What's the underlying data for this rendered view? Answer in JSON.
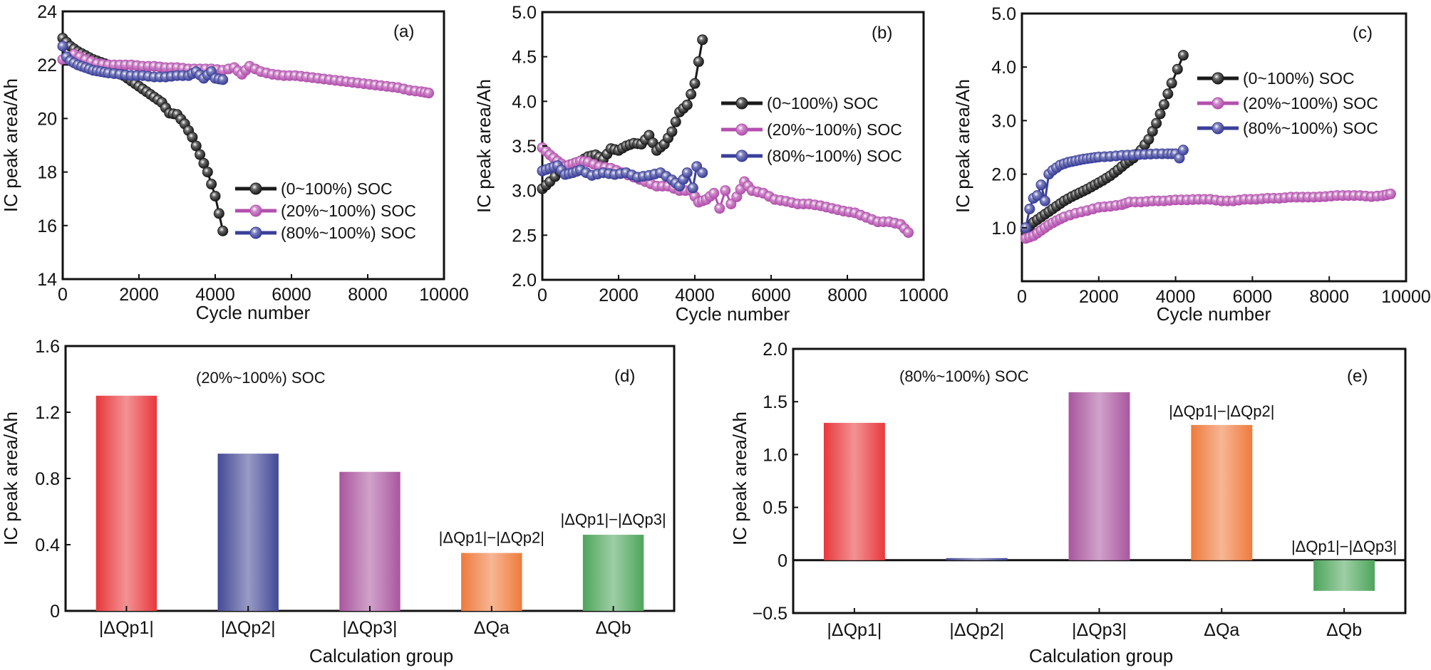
{
  "chart_data": [
    {
      "id": "a",
      "type": "line",
      "panel_label": "(a)",
      "title": "",
      "xlabel": "Cycle number",
      "ylabel": "IC peak area/Ah",
      "xlim": [
        0,
        10000
      ],
      "ylim": [
        14,
        24
      ],
      "xticks": [
        0,
        2000,
        4000,
        6000,
        8000,
        10000
      ],
      "xtick_labels": [
        "0",
        "2000",
        "4000",
        "6000",
        "8000",
        "10000"
      ],
      "yticks": [
        14,
        16,
        18,
        20,
        22,
        24
      ],
      "ytick_labels": [
        "14",
        "16",
        "18",
        "20",
        "22",
        "24"
      ],
      "grid": false,
      "legend_position": "bottom-right",
      "series": [
        {
          "name": "(0~100%) SOC",
          "color": "#1a1a1a",
          "x": [
            0,
            200,
            400,
            600,
            800,
            1000,
            1200,
            1400,
            1600,
            1800,
            2000,
            2200,
            2400,
            2600,
            2800,
            3000,
            3200,
            3400,
            3600,
            3800,
            4000,
            4200
          ],
          "y": [
            23.0,
            22.7,
            22.5,
            22.35,
            22.2,
            22.1,
            22.0,
            21.85,
            21.6,
            21.4,
            21.2,
            21.0,
            20.8,
            20.6,
            20.2,
            20.15,
            19.8,
            19.3,
            18.65,
            18.0,
            17.1,
            15.8
          ]
        },
        {
          "name": "(20%~100%) SOC",
          "color": "#b34fae",
          "x": [
            0,
            300,
            600,
            900,
            1200,
            1500,
            1800,
            2100,
            2400,
            2700,
            3000,
            3300,
            3600,
            3900,
            4200,
            4500,
            4700,
            4900,
            5200,
            5500,
            5800,
            6100,
            6400,
            6700,
            7000,
            7300,
            7600,
            7900,
            8200,
            8500,
            8800,
            9100,
            9400,
            9600
          ],
          "y": [
            22.2,
            22.4,
            22.2,
            22.05,
            22.0,
            22.0,
            22.0,
            21.95,
            21.95,
            21.9,
            21.9,
            21.85,
            21.85,
            21.85,
            21.8,
            21.9,
            21.65,
            21.95,
            21.75,
            21.65,
            21.6,
            21.6,
            21.55,
            21.5,
            21.45,
            21.4,
            21.35,
            21.3,
            21.25,
            21.2,
            21.15,
            21.05,
            21.0,
            20.95
          ]
        },
        {
          "name": "(80%~100%) SOC",
          "color": "#3a3f9a",
          "x": [
            0,
            100,
            200,
            400,
            600,
            800,
            1000,
            1200,
            1500,
            1800,
            2100,
            2400,
            2700,
            3000,
            3300,
            3500,
            3700,
            3900,
            4000,
            4200
          ],
          "y": [
            22.7,
            22.3,
            22.15,
            22.0,
            21.9,
            21.8,
            21.75,
            21.7,
            21.65,
            21.6,
            21.6,
            21.55,
            21.55,
            21.6,
            21.6,
            21.75,
            21.5,
            21.75,
            21.5,
            21.45
          ]
        }
      ]
    },
    {
      "id": "b",
      "type": "line",
      "panel_label": "(b)",
      "title": "",
      "xlabel": "Cycle number",
      "ylabel": "IC peak area/Ah",
      "xlim": [
        0,
        10000
      ],
      "ylim": [
        2.0,
        5.0
      ],
      "xticks": [
        0,
        2000,
        4000,
        6000,
        8000,
        10000
      ],
      "xtick_labels": [
        "0",
        "2000",
        "4000",
        "6000",
        "8000",
        "10000"
      ],
      "yticks": [
        2.0,
        2.5,
        3.0,
        3.5,
        4.0,
        4.5,
        5.0
      ],
      "ytick_labels": [
        "2.0",
        "2.5",
        "3.0",
        "3.5",
        "4.0",
        "4.5",
        "5.0"
      ],
      "grid": false,
      "legend_position": "center-right",
      "series": [
        {
          "name": "(0~100%) SOC",
          "color": "#1a1a1a",
          "x": [
            0,
            200,
            600,
            1000,
            1200,
            1400,
            1600,
            1800,
            2000,
            2200,
            2400,
            2600,
            2800,
            3000,
            3200,
            3400,
            3600,
            3800,
            4000,
            4200
          ],
          "y": [
            3.02,
            3.1,
            3.27,
            3.33,
            3.38,
            3.4,
            3.35,
            3.47,
            3.45,
            3.5,
            3.53,
            3.52,
            3.62,
            3.45,
            3.52,
            3.66,
            3.88,
            3.96,
            4.2,
            4.69
          ]
        },
        {
          "name": "(20%~100%) SOC",
          "color": "#b34fae",
          "x": [
            0,
            200,
            400,
            600,
            800,
            1000,
            1200,
            1500,
            1800,
            2100,
            2400,
            2700,
            3000,
            3300,
            3600,
            3900,
            4100,
            4300,
            4500,
            4650,
            4800,
            4950,
            5100,
            5300,
            5500,
            5800,
            6100,
            6400,
            6700,
            7000,
            7300,
            7600,
            7900,
            8200,
            8500,
            8800,
            9100,
            9400,
            9600
          ],
          "y": [
            3.48,
            3.4,
            3.33,
            3.27,
            3.3,
            3.33,
            3.32,
            3.27,
            3.25,
            3.2,
            3.15,
            3.1,
            3.05,
            3.05,
            3.0,
            3.0,
            2.87,
            2.9,
            2.97,
            2.8,
            3.0,
            2.85,
            2.93,
            3.1,
            3.0,
            2.97,
            2.9,
            2.88,
            2.85,
            2.85,
            2.83,
            2.8,
            2.77,
            2.75,
            2.7,
            2.65,
            2.65,
            2.62,
            2.53
          ]
        },
        {
          "name": "(80%~100%) SOC",
          "color": "#3a3f9a",
          "x": [
            0,
            200,
            400,
            600,
            800,
            1000,
            1300,
            1600,
            1900,
            2200,
            2500,
            2800,
            3100,
            3400,
            3600,
            3800,
            3950,
            4050,
            4200
          ],
          "y": [
            3.22,
            3.25,
            3.28,
            3.18,
            3.2,
            3.23,
            3.17,
            3.2,
            3.18,
            3.2,
            3.15,
            3.17,
            3.2,
            3.12,
            3.05,
            3.2,
            3.03,
            3.27,
            3.2
          ]
        }
      ]
    },
    {
      "id": "c",
      "type": "line",
      "panel_label": "(c)",
      "title": "",
      "xlabel": "Cycle number",
      "ylabel": "IC peak area/Ah",
      "xlim": [
        0,
        10000
      ],
      "ylim": [
        0,
        5.0
      ],
      "xticks": [
        0,
        2000,
        4000,
        6000,
        8000,
        10000
      ],
      "xtick_labels": [
        "0",
        "2000",
        "4000",
        "6000",
        "8000",
        "10000"
      ],
      "yticks": [
        1.0,
        2.0,
        3.0,
        4.0,
        5.0
      ],
      "ytick_labels": [
        "1.0",
        "2.0",
        "3.0",
        "4.0",
        "5.0"
      ],
      "grid": false,
      "legend_position": "top-right",
      "series": [
        {
          "name": "(0~100%) SOC",
          "color": "#1a1a1a",
          "x": [
            100,
            300,
            500,
            700,
            900,
            1100,
            1300,
            1500,
            1700,
            1900,
            2100,
            2300,
            2500,
            2700,
            2900,
            3100,
            3300,
            3500,
            3700,
            3900,
            4200
          ],
          "y": [
            0.95,
            1.1,
            1.2,
            1.3,
            1.4,
            1.5,
            1.58,
            1.65,
            1.72,
            1.8,
            1.88,
            1.97,
            2.08,
            2.2,
            2.3,
            2.45,
            2.65,
            2.95,
            3.3,
            3.7,
            4.22
          ]
        },
        {
          "name": "(20%~100%) SOC",
          "color": "#b34fae",
          "x": [
            100,
            300,
            500,
            700,
            900,
            1100,
            1400,
            1700,
            2000,
            2300,
            2600,
            2800,
            3100,
            3400,
            3700,
            4000,
            4300,
            4600,
            4900,
            5200,
            5500,
            5800,
            6100,
            6400,
            6700,
            7000,
            7300,
            7600,
            7900,
            8200,
            8500,
            8800,
            9100,
            9400,
            9600
          ],
          "y": [
            0.8,
            0.85,
            0.95,
            1.05,
            1.13,
            1.2,
            1.27,
            1.32,
            1.38,
            1.4,
            1.43,
            1.48,
            1.48,
            1.5,
            1.5,
            1.52,
            1.52,
            1.53,
            1.53,
            1.5,
            1.5,
            1.53,
            1.53,
            1.55,
            1.55,
            1.57,
            1.57,
            1.57,
            1.58,
            1.6,
            1.6,
            1.6,
            1.58,
            1.6,
            1.63
          ]
        },
        {
          "name": "(80%~100%) SOC",
          "color": "#3a3f9a",
          "x": [
            100,
            200,
            300,
            400,
            500,
            600,
            700,
            800,
            900,
            1000,
            1200,
            1400,
            1600,
            1800,
            2000,
            2300,
            2600,
            2900,
            3200,
            3500,
            3800,
            4000,
            4100,
            4200
          ],
          "y": [
            1.0,
            1.35,
            1.55,
            1.6,
            1.8,
            1.5,
            2.0,
            2.07,
            2.12,
            2.17,
            2.22,
            2.25,
            2.28,
            2.3,
            2.32,
            2.33,
            2.35,
            2.36,
            2.37,
            2.38,
            2.38,
            2.38,
            2.3,
            2.45
          ]
        }
      ]
    },
    {
      "id": "d",
      "type": "bar",
      "panel_label": "(d)",
      "title": "(20%~100%) SOC",
      "xlabel": "Calculation group",
      "ylabel": "IC peak area/Ah",
      "ylim": [
        0,
        1.6
      ],
      "yticks": [
        0,
        0.4,
        0.8,
        1.2,
        1.6
      ],
      "ytick_labels": [
        "0",
        "0.4",
        "0.8",
        "1.2",
        "1.6"
      ],
      "grid": false,
      "categories": [
        "|ΔQp1|",
        "|ΔQp2|",
        "|ΔQp3|",
        "ΔQa",
        "ΔQb"
      ],
      "values": [
        1.3,
        0.95,
        0.84,
        0.35,
        0.46
      ],
      "colors": [
        "#e8383c",
        "#444a96",
        "#a9569f",
        "#ee7b3c",
        "#4ea55c"
      ],
      "annotations": [
        {
          "category": "ΔQa",
          "text": "|ΔQp1|−|ΔQp2|"
        },
        {
          "category": "ΔQb",
          "text": "|ΔQp1|−|ΔQp3|"
        }
      ]
    },
    {
      "id": "e",
      "type": "bar",
      "panel_label": "(e)",
      "title": "(80%~100%) SOC",
      "xlabel": "Calculation group",
      "ylabel": "IC peak area/Ah",
      "ylim": [
        -0.5,
        2.0
      ],
      "yticks": [
        -0.5,
        0,
        0.5,
        1.0,
        1.5,
        2.0
      ],
      "ytick_labels": [
        "−0.5",
        "0",
        "0.5",
        "1.0",
        "1.5",
        "2.0"
      ],
      "grid": false,
      "categories": [
        "|ΔQp1|",
        "|ΔQp2|",
        "|ΔQp3|",
        "ΔQa",
        "ΔQb"
      ],
      "values": [
        1.3,
        0.02,
        1.59,
        1.28,
        -0.29
      ],
      "colors": [
        "#e8383c",
        "#444a96",
        "#a9569f",
        "#ee7b3c",
        "#4ea55c"
      ],
      "annotations": [
        {
          "category": "ΔQa",
          "text": "|ΔQp1|−|ΔQp2|"
        },
        {
          "category": "ΔQb",
          "text": "|ΔQp1|−|ΔQp3|"
        }
      ]
    }
  ]
}
